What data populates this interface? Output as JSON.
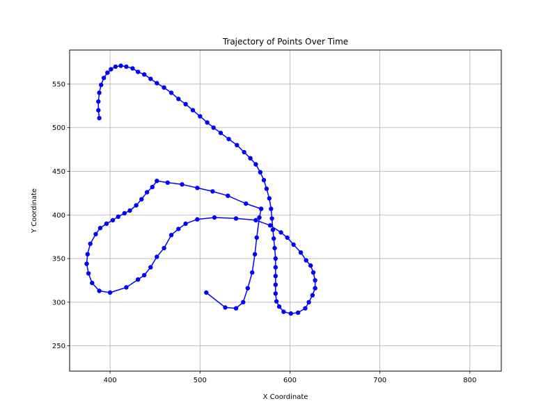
{
  "chart_data": {
    "type": "line",
    "title": "Trajectory of Points Over Time",
    "xlabel": "X Coordinate",
    "ylabel": "Y Coordinate",
    "xlim": [
      355,
      835
    ],
    "ylim": [
      221,
      589
    ],
    "xticks": [
      400,
      500,
      600,
      700,
      800
    ],
    "yticks": [
      250,
      300,
      350,
      400,
      450,
      500,
      550
    ],
    "grid": true,
    "series_color": "#0000ff",
    "markers": true,
    "series": [
      {
        "points": [
          [
            507,
            311
          ],
          [
            528,
            294
          ],
          [
            540,
            293
          ],
          [
            548,
            300
          ],
          [
            553,
            316
          ],
          [
            558,
            334
          ],
          [
            561,
            355
          ],
          [
            563,
            374
          ],
          [
            566,
            397
          ],
          [
            568,
            407
          ],
          [
            551,
            413
          ],
          [
            531,
            422
          ],
          [
            514,
            427
          ],
          [
            497,
            431
          ],
          [
            480,
            435
          ],
          [
            464,
            437
          ],
          [
            452,
            439
          ],
          [
            447,
            432
          ],
          [
            441,
            426
          ],
          [
            435,
            418
          ],
          [
            429,
            411
          ],
          [
            422,
            405
          ],
          [
            416,
            402
          ],
          [
            409,
            398
          ],
          [
            403,
            394
          ],
          [
            396,
            390
          ],
          [
            389,
            385
          ],
          [
            384,
            378
          ],
          [
            378,
            367
          ],
          [
            375,
            355
          ],
          [
            374,
            344
          ],
          [
            376,
            333
          ],
          [
            380,
            322
          ],
          [
            388,
            313
          ],
          [
            400,
            311
          ],
          [
            418,
            317
          ],
          [
            431,
            326
          ],
          [
            438,
            331
          ],
          [
            445,
            340
          ],
          [
            452,
            352
          ],
          [
            460,
            362
          ],
          [
            468,
            377
          ],
          [
            476,
            384
          ],
          [
            484,
            390
          ],
          [
            497,
            395
          ],
          [
            516,
            397
          ],
          [
            540,
            396
          ],
          [
            562,
            394
          ],
          [
            578,
            388
          ],
          [
            590,
            380
          ],
          [
            597,
            374
          ],
          [
            604,
            366
          ],
          [
            612,
            357
          ],
          [
            618,
            348
          ],
          [
            623,
            342
          ],
          [
            626,
            334
          ],
          [
            628,
            325
          ],
          [
            628,
            316
          ],
          [
            625,
            308
          ],
          [
            621,
            300
          ],
          [
            617,
            293
          ],
          [
            609,
            288
          ],
          [
            601,
            287
          ],
          [
            593,
            289
          ],
          [
            588,
            295
          ],
          [
            585,
            301
          ],
          [
            584,
            310
          ],
          [
            584,
            320
          ],
          [
            584,
            330
          ],
          [
            584,
            340
          ],
          [
            584,
            350
          ],
          [
            583,
            362
          ],
          [
            582,
            373
          ],
          [
            581,
            383
          ],
          [
            580,
            396
          ],
          [
            579,
            407
          ],
          [
            577,
            419
          ],
          [
            574,
            430
          ],
          [
            571,
            440
          ],
          [
            567,
            449
          ],
          [
            562,
            458
          ],
          [
            556,
            465
          ],
          [
            549,
            472
          ],
          [
            541,
            480
          ],
          [
            532,
            487
          ],
          [
            523,
            494
          ],
          [
            515,
            500
          ],
          [
            508,
            506
          ],
          [
            500,
            513
          ],
          [
            492,
            520
          ],
          [
            484,
            527
          ],
          [
            476,
            533
          ],
          [
            468,
            540
          ],
          [
            460,
            546
          ],
          [
            452,
            551
          ],
          [
            445,
            556
          ],
          [
            438,
            561
          ],
          [
            431,
            564
          ],
          [
            425,
            568
          ],
          [
            418,
            570
          ],
          [
            412,
            571
          ],
          [
            406,
            570
          ],
          [
            401,
            567
          ],
          [
            397,
            563
          ],
          [
            393,
            557
          ],
          [
            390,
            549
          ],
          [
            388,
            540
          ],
          [
            387,
            530
          ],
          [
            387,
            520
          ],
          [
            388,
            511
          ]
        ]
      }
    ]
  }
}
